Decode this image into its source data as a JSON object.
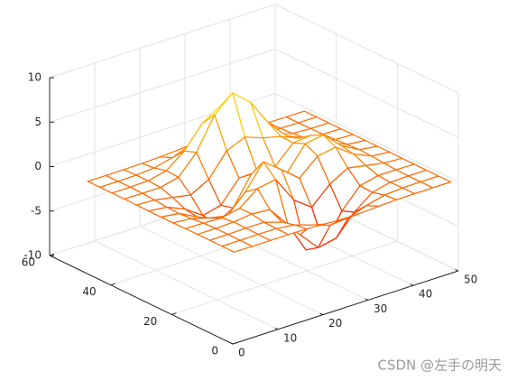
{
  "chart_data": {
    "type": "mesh",
    "x": [
      1,
      5,
      9,
      13,
      17,
      21,
      25,
      29,
      33,
      37,
      41,
      45,
      49
    ],
    "y": [
      1,
      5,
      9,
      13,
      17,
      21,
      25,
      29,
      33,
      37,
      41,
      45,
      49
    ],
    "z": [
      [
        0,
        0,
        0,
        0,
        -0.03,
        -0.14,
        -0.24,
        -0.22,
        -0.11,
        -0.03,
        -0.01,
        0,
        0
      ],
      [
        0,
        0,
        0.02,
        0,
        -0.23,
        -0.91,
        -1.56,
        -1.4,
        -0.69,
        -0.18,
        -0.03,
        0,
        0
      ],
      [
        0,
        0.01,
        0.05,
        0.05,
        -0.59,
        -2.64,
        -4.76,
        -4.35,
        -2.1,
        -0.53,
        -0.06,
        0,
        0
      ],
      [
        0,
        0.01,
        0.08,
        0.33,
        0.15,
        -2.18,
        -5.68,
        -5.76,
        -2.63,
        -0.44,
        0.04,
        0.03,
        0
      ],
      [
        -0.01,
        -0.06,
        -0.13,
        0.3,
        1.86,
        2.22,
        -0.73,
        -2.22,
        -0.28,
        0.88,
        0.5,
        0.11,
        0.01
      ],
      [
        -0.03,
        -0.2,
        -0.8,
        -1.21,
        0.8,
        3.55,
        2,
        0.39,
        2.2,
        2.56,
        1.12,
        0.24,
        0.03
      ],
      [
        -0.04,
        -0.3,
        -1.33,
        -2.77,
        -1.65,
        1.48,
        0.98,
        0.38,
        2.93,
        3.27,
        1.41,
        0.3,
        0.03
      ],
      [
        -0.03,
        -0.25,
        -1.12,
        -2.49,
        -2,
        0.39,
        0.46,
        0.38,
        2.37,
        2.56,
        1.09,
        0.23,
        0.03
      ],
      [
        -0.01,
        -0.11,
        -0.48,
        -0.86,
        0.23,
        2.8,
        3.69,
        2.94,
        2.43,
        1.58,
        0.58,
        0.11,
        0.01
      ],
      [
        0,
        -0.02,
        -0.01,
        0.48,
        2.61,
        6.19,
        7.99,
        6.25,
        3.25,
        1.18,
        0.29,
        0.05,
        0
      ],
      [
        0,
        0.01,
        0.08,
        0.55,
        2.1,
        4.56,
        5.86,
        4.57,
        2.21,
        0.68,
        0.13,
        0.02,
        0
      ],
      [
        0,
        0,
        0.03,
        0.19,
        0.69,
        1.46,
        1.88,
        1.46,
        0.7,
        0.2,
        0.04,
        0,
        0
      ],
      [
        0,
        0,
        0.01,
        0.03,
        0.11,
        0.23,
        0.3,
        0.23,
        0.11,
        0.03,
        0.01,
        0,
        0
      ]
    ],
    "xlim": [
      0,
      50
    ],
    "ylim": [
      0,
      60
    ],
    "zlim": [
      -10,
      10
    ],
    "xticks": [
      0,
      10,
      20,
      30,
      40,
      50
    ],
    "yticks": [
      0,
      20,
      40,
      60
    ],
    "zticks": [
      -10,
      -5,
      0,
      5,
      10
    ],
    "grid": true,
    "colormap": [
      "#ff0000",
      "#ffff00"
    ]
  },
  "watermark": "CSDN @左手の明天"
}
